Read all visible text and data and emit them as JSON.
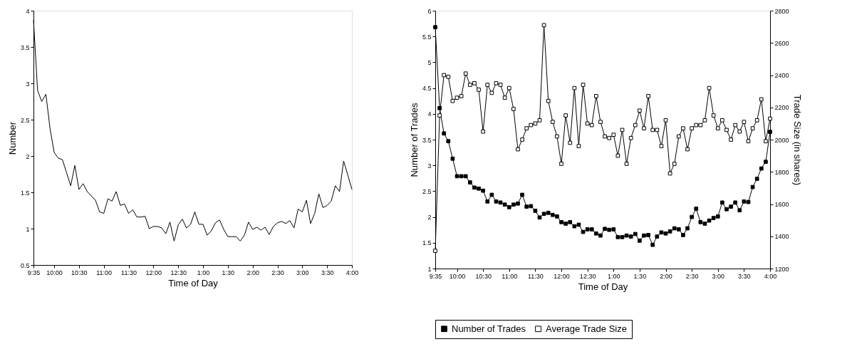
{
  "chart_data": [
    {
      "type": "line",
      "xlabel": "Time of Day",
      "ylabel": "Number",
      "x": [
        "2000-01-01T09:35",
        "2000-01-01T09:40",
        "2000-01-01T09:45",
        "2000-01-01T09:50",
        "2000-01-01T09:55",
        "2000-01-01T10:00",
        "2000-01-01T10:05",
        "2000-01-01T10:10",
        "2000-01-01T10:15",
        "2000-01-01T10:20",
        "2000-01-01T10:25",
        "2000-01-01T10:30",
        "2000-01-01T10:35",
        "2000-01-01T10:40",
        "2000-01-01T10:45",
        "2000-01-01T10:50",
        "2000-01-01T10:55",
        "2000-01-01T11:00",
        "2000-01-01T11:05",
        "2000-01-01T11:10",
        "2000-01-01T11:15",
        "2000-01-01T11:20",
        "2000-01-01T11:25",
        "2000-01-01T11:30",
        "2000-01-01T11:35",
        "2000-01-01T11:40",
        "2000-01-01T11:45",
        "2000-01-01T11:50",
        "2000-01-01T11:55",
        "2000-01-01T12:00",
        "2000-01-01T12:05",
        "2000-01-01T12:10",
        "2000-01-01T12:15",
        "2000-01-01T12:20",
        "2000-01-01T12:25",
        "2000-01-01T12:30",
        "2000-01-01T12:35",
        "2000-01-01T12:40",
        "2000-01-01T12:45",
        "2000-01-01T12:50",
        "2000-01-01T12:55",
        "2000-01-01T13:00",
        "2000-01-01T13:05",
        "2000-01-01T13:10",
        "2000-01-01T13:15",
        "2000-01-01T13:20",
        "2000-01-01T13:25",
        "2000-01-01T13:30",
        "2000-01-01T13:35",
        "2000-01-01T13:40",
        "2000-01-01T13:45",
        "2000-01-01T13:50",
        "2000-01-01T13:55",
        "2000-01-01T14:00",
        "2000-01-01T14:05",
        "2000-01-01T14:10",
        "2000-01-01T14:15",
        "2000-01-01T14:20",
        "2000-01-01T14:25",
        "2000-01-01T14:30",
        "2000-01-01T14:35",
        "2000-01-01T14:40",
        "2000-01-01T14:45",
        "2000-01-01T14:50",
        "2000-01-01T14:55",
        "2000-01-01T15:00",
        "2000-01-01T15:05",
        "2000-01-01T15:10",
        "2000-01-01T15:15",
        "2000-01-01T15:20",
        "2000-01-01T15:25",
        "2000-01-01T15:30",
        "2000-01-01T15:35",
        "2000-01-01T15:40",
        "2000-01-01T15:45",
        "2000-01-01T15:50",
        "2000-01-01T15:55",
        "2000-01-01T16:00"
      ],
      "values": [
        3.87,
        2.9,
        2.75,
        2.85,
        2.38,
        2.05,
        1.97,
        1.95,
        1.77,
        1.59,
        1.87,
        1.54,
        1.62,
        1.51,
        1.45,
        1.39,
        1.23,
        1.21,
        1.41,
        1.38,
        1.51,
        1.32,
        1.34,
        1.21,
        1.26,
        1.16,
        1.16,
        1.17,
        1.0,
        1.03,
        1.03,
        1.01,
        0.93,
        1.09,
        0.83,
        1.05,
        1.13,
        1.01,
        1.06,
        1.23,
        1.06,
        1.06,
        0.91,
        0.97,
        1.08,
        1.12,
        0.99,
        0.89,
        0.89,
        0.89,
        0.83,
        0.91,
        1.09,
        0.99,
        1.02,
        0.98,
        1.02,
        0.92,
        1.03,
        1.08,
        1.1,
        1.07,
        1.11,
        1.01,
        1.27,
        1.23,
        1.39,
        1.07,
        1.21,
        1.48,
        1.29,
        1.32,
        1.38,
        1.59,
        1.51,
        1.93,
        1.74,
        1.54
      ],
      "color": "#000000",
      "xlim": [
        "2000-01-01T09:35",
        "2000-01-01T16:00"
      ],
      "xticks": [
        {
          "value": "2000-01-01T09:35",
          "label": "9:35"
        },
        {
          "value": "2000-01-01T10:00",
          "label": "10:00"
        },
        {
          "value": "2000-01-01T10:30",
          "label": "10:30"
        },
        {
          "value": "2000-01-01T11:00",
          "label": "11:00"
        },
        {
          "value": "2000-01-01T11:30",
          "label": "11:30"
        },
        {
          "value": "2000-01-01T12:00",
          "label": "12:00"
        },
        {
          "value": "2000-01-01T12:30",
          "label": "12:30"
        },
        {
          "value": "2000-01-01T13:00",
          "label": "1:00"
        },
        {
          "value": "2000-01-01T13:30",
          "label": "1:30"
        },
        {
          "value": "2000-01-01T14:00",
          "label": "2:00"
        },
        {
          "value": "2000-01-01T14:30",
          "label": "2:30"
        },
        {
          "value": "2000-01-01T15:00",
          "label": "3:00"
        },
        {
          "value": "2000-01-01T15:30",
          "label": "3:30"
        },
        {
          "value": "2000-01-01T16:00",
          "label": "4:00"
        }
      ],
      "ylim": [
        0.5,
        4
      ],
      "yticks": [
        0.5,
        1,
        1.5,
        2,
        2.5,
        3,
        3.5,
        4
      ],
      "grid": false,
      "legend": false,
      "marker": "none",
      "line_style": "solid"
    },
    {
      "type": "line",
      "xlabel": "Time of Day",
      "ylabel": "Number of Trades",
      "y2label": "Trade Size (in shares)",
      "x": [
        "2000-01-01T09:35",
        "2000-01-01T09:40",
        "2000-01-01T09:45",
        "2000-01-01T09:50",
        "2000-01-01T09:55",
        "2000-01-01T10:00",
        "2000-01-01T10:05",
        "2000-01-01T10:10",
        "2000-01-01T10:15",
        "2000-01-01T10:20",
        "2000-01-01T10:25",
        "2000-01-01T10:30",
        "2000-01-01T10:35",
        "2000-01-01T10:40",
        "2000-01-01T10:45",
        "2000-01-01T10:50",
        "2000-01-01T10:55",
        "2000-01-01T11:00",
        "2000-01-01T11:05",
        "2000-01-01T11:10",
        "2000-01-01T11:15",
        "2000-01-01T11:20",
        "2000-01-01T11:25",
        "2000-01-01T11:30",
        "2000-01-01T11:35",
        "2000-01-01T11:40",
        "2000-01-01T11:45",
        "2000-01-01T11:50",
        "2000-01-01T11:55",
        "2000-01-01T12:00",
        "2000-01-01T12:05",
        "2000-01-01T12:10",
        "2000-01-01T12:15",
        "2000-01-01T12:20",
        "2000-01-01T12:25",
        "2000-01-01T12:30",
        "2000-01-01T12:35",
        "2000-01-01T12:40",
        "2000-01-01T12:45",
        "2000-01-01T12:50",
        "2000-01-01T12:55",
        "2000-01-01T13:00",
        "2000-01-01T13:05",
        "2000-01-01T13:10",
        "2000-01-01T13:15",
        "2000-01-01T13:20",
        "2000-01-01T13:25",
        "2000-01-01T13:30",
        "2000-01-01T13:35",
        "2000-01-01T13:40",
        "2000-01-01T13:45",
        "2000-01-01T13:50",
        "2000-01-01T13:55",
        "2000-01-01T14:00",
        "2000-01-01T14:05",
        "2000-01-01T14:10",
        "2000-01-01T14:15",
        "2000-01-01T14:20",
        "2000-01-01T14:25",
        "2000-01-01T14:30",
        "2000-01-01T14:35",
        "2000-01-01T14:40",
        "2000-01-01T14:45",
        "2000-01-01T14:50",
        "2000-01-01T14:55",
        "2000-01-01T15:00",
        "2000-01-01T15:05",
        "2000-01-01T15:10",
        "2000-01-01T15:15",
        "2000-01-01T15:20",
        "2000-01-01T15:25",
        "2000-01-01T15:30",
        "2000-01-01T15:35",
        "2000-01-01T15:40",
        "2000-01-01T15:45",
        "2000-01-01T15:50",
        "2000-01-01T15:55",
        "2000-01-01T16:00"
      ],
      "series": [
        {
          "name": "Number of Trades",
          "color": "#000000",
          "values": [
            5.68,
            4.11,
            3.62,
            3.47,
            3.13,
            2.79,
            2.79,
            2.79,
            2.67,
            2.57,
            2.55,
            2.51,
            2.3,
            2.43,
            2.3,
            2.28,
            2.24,
            2.19,
            2.24,
            2.26,
            2.43,
            2.2,
            2.21,
            2.12,
            1.99,
            2.06,
            2.08,
            2.04,
            2.01,
            1.9,
            1.87,
            1.9,
            1.82,
            1.85,
            1.71,
            1.76,
            1.76,
            1.68,
            1.64,
            1.77,
            1.75,
            1.76,
            1.61,
            1.61,
            1.64,
            1.62,
            1.67,
            1.54,
            1.64,
            1.65,
            1.46,
            1.62,
            1.7,
            1.68,
            1.72,
            1.78,
            1.76,
            1.65,
            1.78,
            2.0,
            2.16,
            1.9,
            1.87,
            1.93,
            1.98,
            2.01,
            2.28,
            2.15,
            2.2,
            2.28,
            2.13,
            2.3,
            2.29,
            2.58,
            2.74,
            2.94,
            3.07,
            3.65
          ]
        },
        {
          "name": "Average Trade Size",
          "color": "#000000",
          "axis": "y2",
          "values": [
            1310,
            2150,
            2400,
            2390,
            2240,
            2260,
            2270,
            2410,
            2340,
            2350,
            2310,
            2050,
            2340,
            2290,
            2350,
            2340,
            2260,
            2320,
            2190,
            1940,
            2000,
            2070,
            2090,
            2100,
            2120,
            2710,
            2240,
            2110,
            2020,
            1850,
            2150,
            1980,
            2320,
            1960,
            2340,
            2100,
            2090,
            2270,
            2110,
            2020,
            2010,
            2030,
            1900,
            2060,
            1850,
            2010,
            2090,
            2180,
            2070,
            2270,
            2060,
            2060,
            1960,
            2120,
            1790,
            1850,
            2020,
            2070,
            1940,
            2070,
            2090,
            2090,
            2120,
            2320,
            2150,
            2070,
            2120,
            2060,
            2000,
            2090,
            2050,
            2110,
            1990,
            2070,
            2120,
            2250,
            1990,
            2130
          ]
        }
      ],
      "xlim": [
        "2000-01-01T09:35",
        "2000-01-01T16:00"
      ],
      "xticks": [
        {
          "value": "2000-01-01T09:35",
          "label": "9:35"
        },
        {
          "value": "2000-01-01T10:00",
          "label": "10:00"
        },
        {
          "value": "2000-01-01T10:30",
          "label": "10:30"
        },
        {
          "value": "2000-01-01T11:00",
          "label": "11:00"
        },
        {
          "value": "2000-01-01T11:30",
          "label": "11:30"
        },
        {
          "value": "2000-01-01T12:00",
          "label": "12:00"
        },
        {
          "value": "2000-01-01T12:30",
          "label": "12:30"
        },
        {
          "value": "2000-01-01T13:00",
          "label": "1:00"
        },
        {
          "value": "2000-01-01T13:30",
          "label": "1:30"
        },
        {
          "value": "2000-01-01T14:00",
          "label": "2:00"
        },
        {
          "value": "2000-01-01T14:30",
          "label": "2:30"
        },
        {
          "value": "2000-01-01T15:00",
          "label": "3:00"
        },
        {
          "value": "2000-01-01T15:30",
          "label": "3:30"
        },
        {
          "value": "2000-01-01T16:00",
          "label": "4:00"
        }
      ],
      "ylim": [
        1,
        6
      ],
      "yticks": [
        1,
        1.5,
        2,
        2.5,
        3,
        3.5,
        4,
        4.5,
        5,
        5.5,
        6
      ],
      "y2lim": [
        1200,
        2800
      ],
      "y2ticks": [
        1200,
        1400,
        1600,
        1800,
        2000,
        2200,
        2400,
        2600,
        2800
      ],
      "grid": false,
      "legend": "bottom",
      "marker": "square",
      "line_style": "solid"
    }
  ]
}
